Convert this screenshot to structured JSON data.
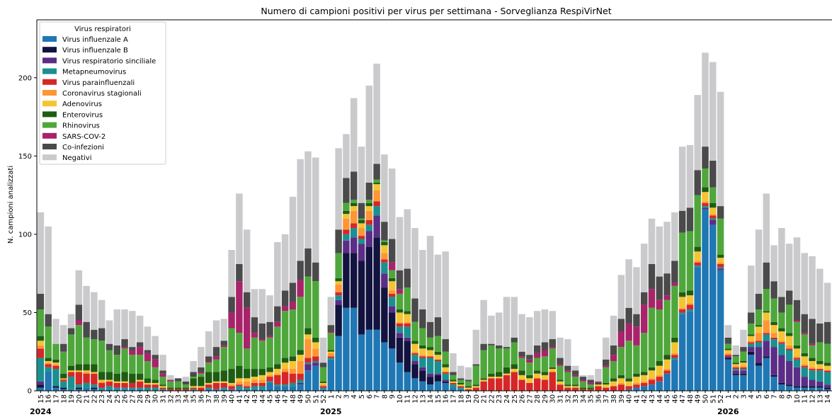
{
  "chart_data": {
    "type": "bar",
    "title": "Numero di campioni positivi per virus per settimana - Sorveglianza RespiVirNet",
    "ylabel": "N. campioni analizzati",
    "xlabel": "",
    "ylim": [
      0,
      237
    ],
    "yticks": [
      0,
      50,
      100,
      150,
      200
    ],
    "grid": false,
    "legend_position": "top-left",
    "legend_title": "Virus respiratori",
    "year_labels": [
      {
        "label": "2024",
        "week_index": 0
      },
      {
        "label": "2025",
        "week_index": 38
      },
      {
        "label": "2026",
        "week_index": 90
      }
    ],
    "categories": [
      "15",
      "16",
      "17",
      "18",
      "19",
      "20",
      "21",
      "22",
      "23",
      "24",
      "25",
      "26",
      "27",
      "28",
      "29",
      "30",
      "31",
      "32",
      "33",
      "34",
      "35",
      "36",
      "37",
      "38",
      "39",
      "40",
      "41",
      "42",
      "43",
      "44",
      "45",
      "46",
      "47",
      "48",
      "49",
      "50",
      "51",
      "52",
      "1",
      "2",
      "3",
      "4",
      "5",
      "6",
      "7",
      "8",
      "9",
      "10",
      "11",
      "12",
      "13",
      "14",
      "15",
      "16",
      "17",
      "18",
      "19",
      "20",
      "21",
      "22",
      "23",
      "24",
      "25",
      "26",
      "27",
      "28",
      "29",
      "30",
      "31",
      "32",
      "33",
      "34",
      "35",
      "36",
      "37",
      "38",
      "39",
      "40",
      "41",
      "42",
      "43",
      "44",
      "45",
      "46",
      "47",
      "48",
      "49",
      "50",
      "51",
      "52",
      "1",
      "2",
      "3",
      "4",
      "5",
      "6",
      "7",
      "8",
      "9",
      "10",
      "11",
      "12",
      "13",
      "14"
    ],
    "series": [
      {
        "name": "Virus influenzale A",
        "color": "#1f77b4",
        "values": [
          2,
          12,
          2,
          1,
          1,
          1,
          2,
          1,
          1,
          1,
          1,
          1,
          1,
          1,
          0,
          0,
          0,
          0,
          0,
          0,
          0,
          0,
          1,
          1,
          1,
          1,
          1,
          1,
          1,
          1,
          5,
          3,
          3,
          3,
          4,
          13,
          16,
          1,
          20,
          35,
          53,
          53,
          36,
          39,
          39,
          31,
          27,
          18,
          12,
          8,
          6,
          4,
          6,
          5,
          2,
          1,
          0,
          0,
          0,
          0,
          0,
          0,
          0,
          0,
          0,
          0,
          0,
          0,
          0,
          0,
          0,
          0,
          0,
          0,
          0,
          0,
          0,
          1,
          2,
          3,
          4,
          6,
          11,
          20,
          49,
          51,
          79,
          116,
          106,
          77,
          20,
          10,
          10,
          23,
          16,
          21,
          9,
          4,
          3,
          2,
          2,
          2,
          2,
          1
        ]
      },
      {
        "name": "Virus influenzale B",
        "color": "#131340",
        "values": [
          2,
          0,
          1,
          1,
          0,
          1,
          0,
          1,
          0,
          0,
          0,
          0,
          0,
          0,
          0,
          0,
          0,
          0,
          0,
          0,
          0,
          0,
          0,
          0,
          0,
          0,
          0,
          0,
          0,
          0,
          0,
          0,
          0,
          0,
          0,
          0,
          0,
          0,
          0,
          20,
          35,
          35,
          47,
          53,
          59,
          35,
          23,
          16,
          20,
          9,
          7,
          5,
          4,
          1,
          0,
          0,
          0,
          0,
          0,
          0,
          0,
          0,
          0,
          0,
          0,
          0,
          0,
          0,
          0,
          0,
          0,
          0,
          0,
          0,
          0,
          0,
          0,
          0,
          0,
          0,
          0,
          0,
          0,
          0,
          0,
          0,
          0,
          0,
          0,
          0,
          1,
          1,
          1,
          2,
          2,
          1,
          1,
          1,
          1,
          1,
          1,
          1,
          1,
          1
        ]
      },
      {
        "name": "Virus respiratorio sinciliale",
        "color": "#5b2d86",
        "values": [
          2,
          0,
          0,
          0,
          0,
          0,
          0,
          0,
          0,
          0,
          0,
          0,
          0,
          0,
          0,
          0,
          0,
          0,
          0,
          0,
          0,
          0,
          0,
          0,
          0,
          0,
          0,
          0,
          0,
          0,
          0,
          0,
          0,
          0,
          1,
          4,
          2,
          0,
          0,
          3,
          8,
          10,
          11,
          10,
          14,
          9,
          4,
          3,
          2,
          2,
          2,
          2,
          1,
          1,
          0,
          0,
          0,
          0,
          0,
          0,
          0,
          0,
          0,
          0,
          0,
          0,
          0,
          0,
          0,
          0,
          0,
          0,
          0,
          0,
          0,
          0,
          0,
          0,
          0,
          0,
          0,
          0,
          0,
          0,
          0,
          0,
          0,
          1,
          3,
          1,
          1,
          2,
          2,
          3,
          10,
          10,
          18,
          18,
          15,
          12,
          6,
          4,
          3,
          2
        ]
      },
      {
        "name": "Metapneumovirus",
        "color": "#1a9090",
        "values": [
          15,
          3,
          11,
          4,
          8,
          2,
          3,
          2,
          1,
          2,
          1,
          1,
          1,
          1,
          2,
          2,
          1,
          0,
          0,
          0,
          1,
          0,
          1,
          0,
          1,
          0,
          2,
          1,
          2,
          2,
          1,
          1,
          1,
          2,
          2,
          1,
          1,
          1,
          1,
          3,
          4,
          6,
          3,
          4,
          6,
          7,
          6,
          4,
          7,
          4,
          6,
          10,
          8,
          4,
          2,
          1,
          0,
          0,
          0,
          0,
          0,
          0,
          0,
          0,
          0,
          0,
          0,
          0,
          0,
          0,
          0,
          0,
          0,
          0,
          0,
          0,
          0,
          0,
          0,
          0,
          0,
          0,
          0,
          1,
          1,
          1,
          1,
          1,
          1,
          1,
          0,
          1,
          1,
          2,
          3,
          4,
          5,
          7,
          7,
          5,
          6,
          6,
          7,
          8
        ]
      },
      {
        "name": "Virus parainfluenzali",
        "color": "#d62728",
        "values": [
          6,
          2,
          2,
          1,
          3,
          8,
          6,
          7,
          3,
          3,
          3,
          3,
          3,
          4,
          2,
          2,
          1,
          1,
          1,
          1,
          1,
          2,
          2,
          4,
          3,
          2,
          1,
          1,
          2,
          2,
          3,
          6,
          8,
          6,
          4,
          3,
          3,
          1,
          1,
          2,
          3,
          3,
          2,
          3,
          3,
          2,
          2,
          2,
          2,
          1,
          1,
          1,
          1,
          1,
          1,
          1,
          1,
          2,
          6,
          8,
          8,
          10,
          12,
          7,
          5,
          8,
          7,
          12,
          4,
          2,
          2,
          1,
          1,
          3,
          2,
          3,
          4,
          2,
          2,
          2,
          3,
          3,
          2,
          2,
          2,
          3,
          2,
          2,
          2,
          2,
          1,
          1,
          1,
          1,
          1,
          1,
          1,
          1,
          1,
          1,
          1,
          1,
          1,
          1
        ]
      },
      {
        "name": "Coronavirus stagionali",
        "color": "#ff9634",
        "values": [
          2,
          1,
          1,
          1,
          0,
          0,
          1,
          0,
          1,
          0,
          0,
          0,
          0,
          0,
          0,
          0,
          0,
          0,
          0,
          0,
          0,
          0,
          0,
          0,
          0,
          1,
          2,
          3,
          2,
          2,
          1,
          1,
          2,
          3,
          8,
          12,
          5,
          1,
          2,
          5,
          7,
          8,
          5,
          6,
          7,
          4,
          2,
          1,
          1,
          1,
          1,
          0,
          0,
          0,
          0,
          0,
          0,
          0,
          0,
          0,
          0,
          0,
          0,
          0,
          0,
          0,
          0,
          0,
          0,
          0,
          0,
          0,
          0,
          0,
          0,
          0,
          1,
          0,
          1,
          1,
          1,
          1,
          1,
          1,
          1,
          1,
          1,
          1,
          1,
          1,
          1,
          1,
          1,
          1,
          5,
          8,
          3,
          1,
          2,
          1,
          1,
          1,
          0,
          0
        ]
      },
      {
        "name": "Adenovirus",
        "color": "#f5c433",
        "values": [
          3,
          1,
          1,
          0,
          1,
          1,
          1,
          1,
          1,
          1,
          1,
          1,
          0,
          1,
          1,
          1,
          1,
          0,
          0,
          0,
          1,
          1,
          1,
          1,
          1,
          1,
          2,
          2,
          2,
          3,
          2,
          3,
          4,
          5,
          4,
          3,
          4,
          1,
          1,
          2,
          3,
          3,
          3,
          3,
          4,
          5,
          6,
          6,
          5,
          5,
          4,
          4,
          3,
          3,
          1,
          1,
          1,
          1,
          1,
          1,
          1,
          1,
          2,
          3,
          3,
          3,
          3,
          2,
          2,
          1,
          1,
          0,
          0,
          1,
          2,
          3,
          3,
          3,
          4,
          4,
          5,
          6,
          6,
          7,
          7,
          5,
          6,
          6,
          4,
          3,
          2,
          1,
          2,
          3,
          4,
          5,
          5,
          6,
          6,
          5,
          5,
          4,
          3,
          3
        ]
      },
      {
        "name": "Enterovirus",
        "color": "#1e5c12",
        "values": [
          3,
          2,
          2,
          3,
          3,
          4,
          4,
          5,
          5,
          5,
          5,
          6,
          6,
          4,
          3,
          2,
          1,
          1,
          1,
          1,
          5,
          6,
          7,
          6,
          7,
          9,
          8,
          6,
          5,
          4,
          3,
          3,
          3,
          3,
          3,
          4,
          3,
          1,
          1,
          2,
          2,
          2,
          2,
          2,
          1,
          2,
          2,
          2,
          2,
          2,
          2,
          2,
          2,
          2,
          1,
          1,
          1,
          1,
          1,
          2,
          3,
          4,
          3,
          3,
          2,
          2,
          2,
          1,
          1,
          1,
          1,
          1,
          1,
          1,
          1,
          2,
          2,
          2,
          2,
          2,
          2,
          3,
          3,
          3,
          3,
          3,
          3,
          3,
          3,
          2,
          1,
          1,
          1,
          1,
          1,
          1,
          2,
          2,
          2,
          2,
          2,
          2,
          2,
          2
        ]
      },
      {
        "name": "Rhinovirus",
        "color": "#4fa73c",
        "values": [
          17,
          20,
          10,
          14,
          20,
          25,
          17,
          16,
          20,
          14,
          12,
          15,
          12,
          12,
          11,
          8,
          5,
          4,
          4,
          2,
          1,
          2,
          6,
          8,
          15,
          26,
          21,
          13,
          20,
          18,
          19,
          24,
          30,
          30,
          34,
          33,
          36,
          9,
          11,
          16,
          5,
          2,
          1,
          2,
          2,
          1,
          5,
          10,
          15,
          12,
          11,
          6,
          10,
          8,
          3,
          2,
          3,
          12,
          18,
          18,
          15,
          12,
          14,
          8,
          8,
          8,
          10,
          12,
          9,
          8,
          5,
          4,
          2,
          0,
          10,
          11,
          18,
          24,
          18,
          25,
          38,
          33,
          35,
          33,
          38,
          38,
          33,
          12,
          10,
          23,
          3,
          4,
          6,
          7,
          10,
          14,
          15,
          10,
          18,
          15,
          12,
          8,
          12,
          12
        ]
      },
      {
        "name": "SARS-COV-2",
        "color": "#a8236a",
        "values": [
          0,
          0,
          0,
          0,
          0,
          3,
          0,
          0,
          0,
          0,
          0,
          1,
          3,
          5,
          5,
          5,
          2,
          1,
          0,
          0,
          0,
          1,
          1,
          2,
          1,
          10,
          33,
          26,
          3,
          1,
          1,
          3,
          3,
          5,
          11,
          0,
          0,
          0,
          1,
          0,
          0,
          0,
          0,
          0,
          0,
          0,
          5,
          3,
          0,
          0,
          0,
          0,
          0,
          0,
          0,
          0,
          0,
          0,
          0,
          0,
          0,
          0,
          0,
          1,
          2,
          3,
          4,
          1,
          1,
          1,
          1,
          1,
          1,
          1,
          1,
          4,
          10,
          11,
          12,
          18,
          12,
          6,
          3,
          2,
          0,
          0,
          0,
          0,
          0,
          0,
          0,
          0,
          0,
          0,
          0,
          0,
          0,
          0,
          0,
          1,
          1,
          1,
          0,
          0
        ]
      },
      {
        "name": "Co-infezioni",
        "color": "#4a4a4a",
        "values": [
          10,
          8,
          0,
          5,
          4,
          10,
          10,
          6,
          8,
          4,
          6,
          5,
          2,
          3,
          2,
          3,
          2,
          0,
          2,
          2,
          3,
          3,
          3,
          6,
          3,
          10,
          11,
          10,
          10,
          10,
          9,
          10,
          10,
          12,
          12,
          18,
          12,
          3,
          4,
          15,
          16,
          18,
          10,
          11,
          10,
          12,
          15,
          12,
          12,
          15,
          12,
          10,
          12,
          8,
          2,
          1,
          1,
          1,
          4,
          1,
          2,
          1,
          3,
          3,
          3,
          5,
          5,
          5,
          4,
          3,
          3,
          2,
          2,
          0,
          4,
          6,
          8,
          10,
          8,
          8,
          16,
          15,
          14,
          14,
          14,
          15,
          16,
          14,
          17,
          8,
          4,
          1,
          3,
          7,
          10,
          17,
          11,
          10,
          9,
          13,
          12,
          16,
          12,
          14
        ]
      },
      {
        "name": "Negativi",
        "color": "#cacacd",
        "values": [
          52,
          56,
          16,
          12,
          9,
          22,
          23,
          24,
          18,
          15,
          23,
          19,
          23,
          17,
          15,
          12,
          10,
          3,
          0,
          3,
          7,
          13,
          16,
          17,
          14,
          30,
          45,
          40,
          18,
          22,
          17,
          41,
          36,
          55,
          65,
          62,
          67,
          16,
          18,
          52,
          28,
          47,
          36,
          62,
          64,
          43,
          45,
          34,
          38,
          45,
          38,
          55,
          40,
          56,
          12,
          8,
          8,
          22,
          28,
          18,
          21,
          32,
          26,
          24,
          24,
          22,
          21,
          18,
          13,
          17,
          3,
          1,
          3,
          8,
          14,
          19,
          28,
          31,
          30,
          31,
          29,
          32,
          33,
          31,
          41,
          40,
          48,
          60,
          63,
          73,
          8,
          6,
          11,
          30,
          41,
          44,
          23,
          44,
          30,
          40,
          39,
          40,
          35,
          25
        ]
      }
    ]
  }
}
